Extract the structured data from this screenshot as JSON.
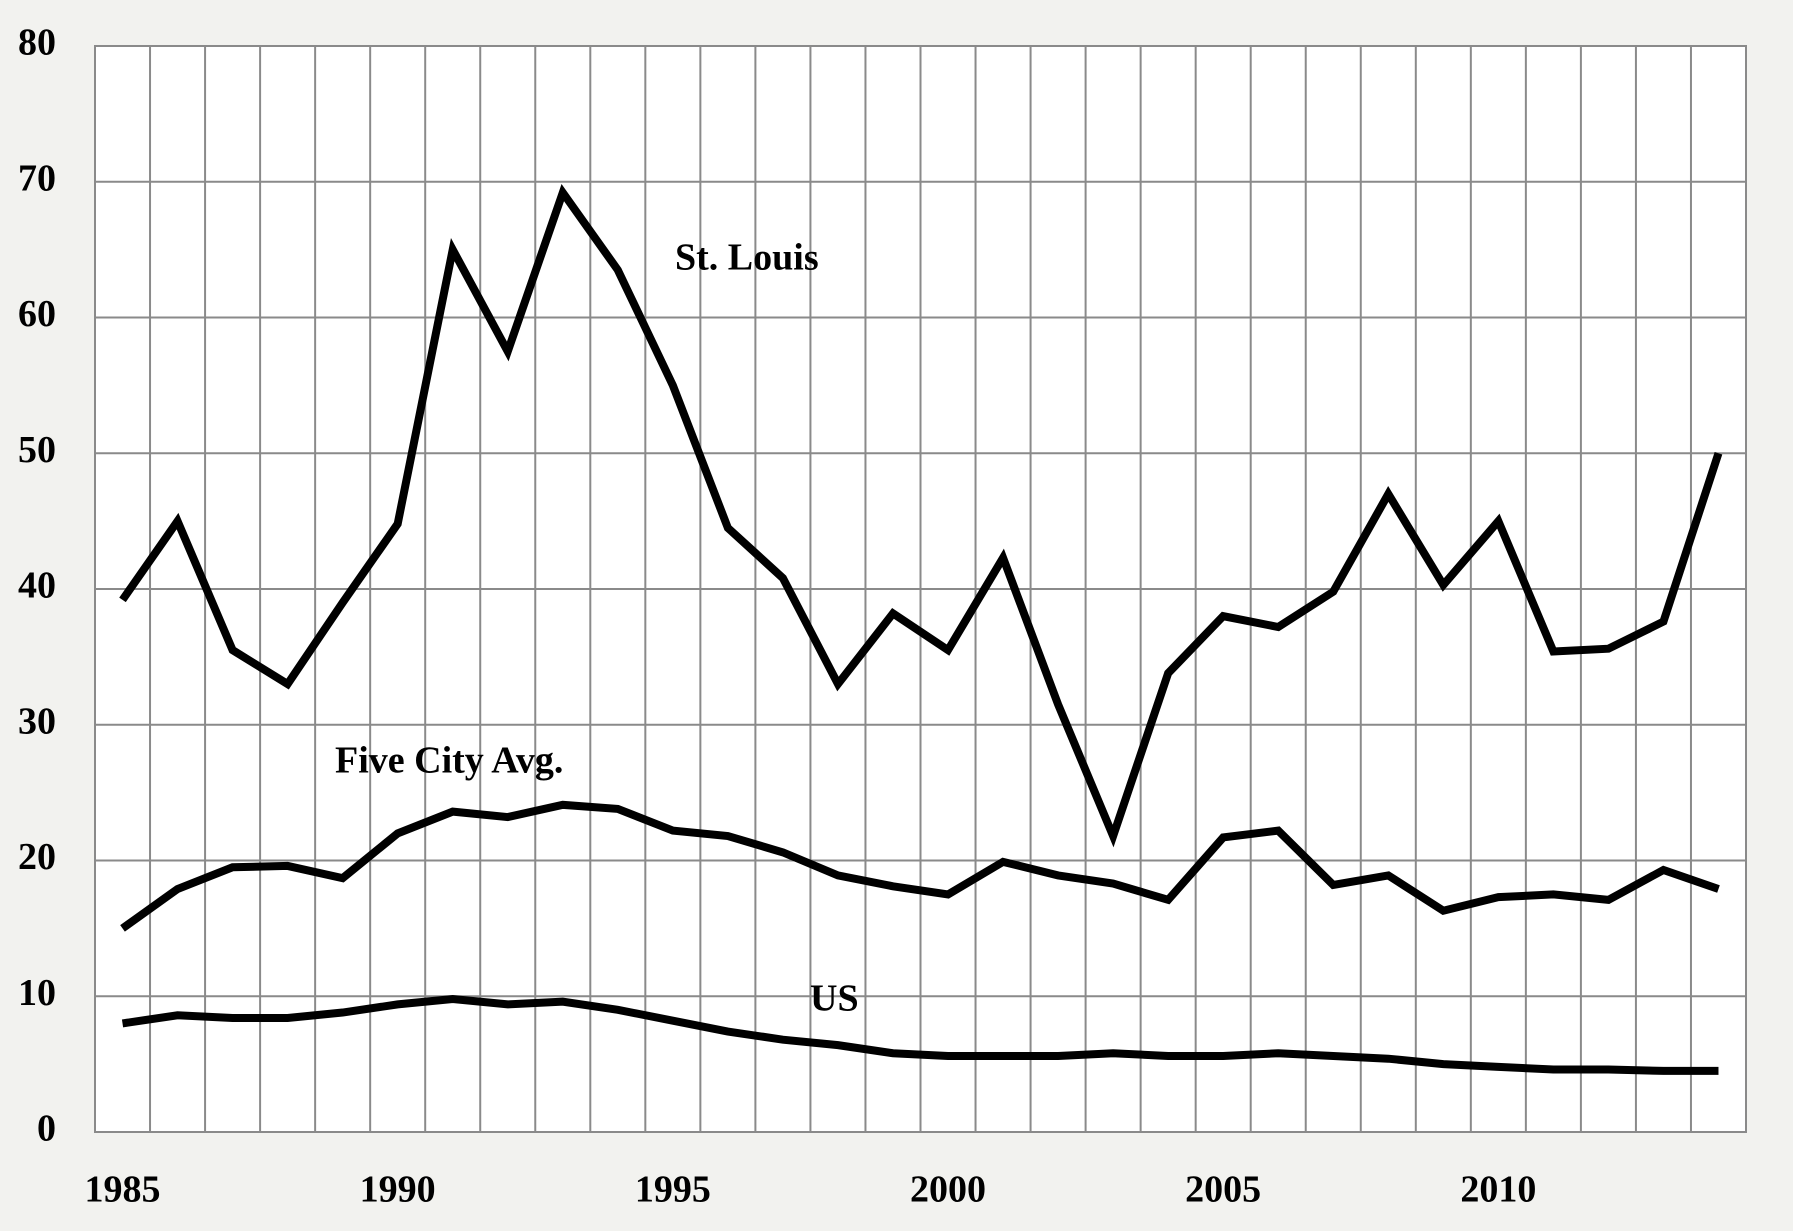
{
  "chart_data": {
    "type": "line",
    "x": [
      1985,
      1986,
      1987,
      1988,
      1989,
      1990,
      1991,
      1992,
      1993,
      1994,
      1995,
      1996,
      1997,
      1998,
      1999,
      2000,
      2001,
      2002,
      2003,
      2004,
      2005,
      2006,
      2007,
      2008,
      2009,
      2010,
      2011,
      2012,
      2013,
      2014
    ],
    "series": [
      {
        "name": "St. Louis",
        "color": "#000000",
        "values": [
          39.2,
          45,
          35.5,
          33,
          39,
          44.8,
          65,
          57.5,
          69.2,
          63.5,
          55,
          44.5,
          40.8,
          33,
          38.2,
          35.5,
          42.3,
          31.5,
          21.8,
          33.8,
          38,
          37.2,
          39.8,
          47,
          40.3,
          45,
          35.4,
          35.6,
          37.6,
          50
        ]
      },
      {
        "name": "Five City Avg.",
        "color": "#000000",
        "values": [
          15,
          17.9,
          19.5,
          19.6,
          18.7,
          22,
          23.6,
          23.2,
          24.1,
          23.8,
          22.2,
          21.8,
          20.6,
          18.9,
          18.1,
          17.5,
          19.9,
          18.9,
          18.3,
          17.1,
          21.7,
          22.2,
          18.2,
          18.9,
          16.3,
          17.3,
          17.5,
          17.1,
          19.3,
          17.9
        ]
      },
      {
        "name": "US",
        "color": "#000000",
        "values": [
          8.0,
          8.6,
          8.4,
          8.4,
          8.8,
          9.4,
          9.8,
          9.4,
          9.6,
          9.0,
          8.2,
          7.4,
          6.8,
          6.4,
          5.8,
          5.6,
          5.6,
          5.6,
          5.8,
          5.6,
          5.6,
          5.8,
          5.6,
          5.4,
          5.0,
          4.8,
          4.6,
          4.6,
          4.5,
          4.5
        ]
      }
    ],
    "xlim": [
      1984.5,
      2014.5
    ],
    "xticks": [
      1985,
      1990,
      1995,
      2000,
      2005,
      2010
    ],
    "xgrid": [
      1984.5,
      1985.5,
      1986.5,
      1987.5,
      1988.5,
      1989.5,
      1990.5,
      1991.5,
      1992.5,
      1993.5,
      1994.5,
      1995.5,
      1996.5,
      1997.5,
      1998.5,
      1999.5,
      2000.5,
      2001.5,
      2002.5,
      2003.5,
      2004.5,
      2005.5,
      2006.5,
      2007.5,
      2008.5,
      2009.5,
      2010.5,
      2011.5,
      2012.5,
      2013.5,
      2014.5
    ],
    "ylim": [
      0,
      80
    ],
    "yticks": [
      0,
      10,
      20,
      30,
      40,
      50,
      60,
      70,
      80
    ],
    "grid": true
  }
}
